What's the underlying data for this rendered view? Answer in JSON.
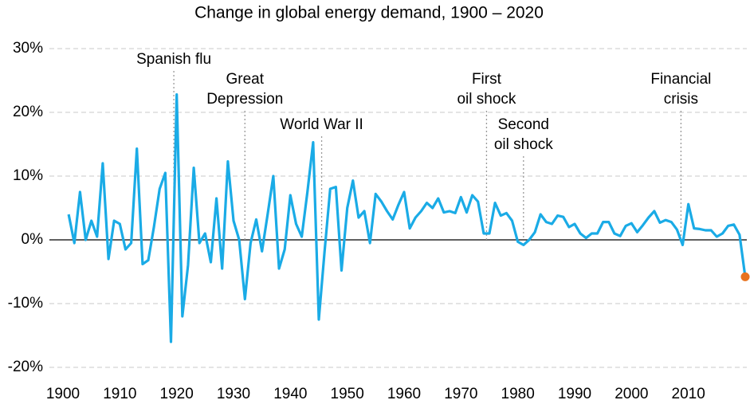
{
  "chart_data": {
    "type": "line",
    "title": "Change in global energy demand, 1900 – 2020",
    "x": [
      1901,
      1902,
      1903,
      1904,
      1905,
      1906,
      1907,
      1908,
      1909,
      1910,
      1911,
      1912,
      1913,
      1914,
      1915,
      1916,
      1917,
      1918,
      1919,
      1920,
      1921,
      1922,
      1923,
      1924,
      1925,
      1926,
      1927,
      1928,
      1929,
      1930,
      1931,
      1932,
      1933,
      1934,
      1935,
      1936,
      1937,
      1938,
      1939,
      1940,
      1941,
      1942,
      1943,
      1944,
      1945,
      1946,
      1947,
      1948,
      1949,
      1950,
      1951,
      1952,
      1953,
      1954,
      1955,
      1956,
      1957,
      1958,
      1959,
      1960,
      1961,
      1962,
      1963,
      1964,
      1965,
      1966,
      1967,
      1968,
      1969,
      1970,
      1971,
      1972,
      1973,
      1974,
      1975,
      1976,
      1977,
      1978,
      1979,
      1980,
      1981,
      1982,
      1983,
      1984,
      1985,
      1986,
      1987,
      1988,
      1989,
      1990,
      1991,
      1992,
      1993,
      1994,
      1995,
      1996,
      1997,
      1998,
      1999,
      2000,
      2001,
      2002,
      2003,
      2004,
      2005,
      2006,
      2007,
      2008,
      2009,
      2010,
      2011,
      2012,
      2013,
      2014,
      2015,
      2016,
      2017,
      2018,
      2019,
      2020
    ],
    "series": [
      {
        "color": "#1aabe6",
        "highlight_color": "#e8731f",
        "values": [
          4,
          -0.5,
          7.5,
          0,
          3,
          0.5,
          12,
          -3,
          3,
          2.5,
          -1.5,
          -0.5,
          14.3,
          -3.8,
          -3.2,
          2,
          8,
          10.5,
          -16,
          22.8,
          -12,
          -4,
          11.3,
          -0.5,
          1,
          -3.5,
          6.5,
          -4.5,
          12.3,
          3,
          0,
          -9.3,
          -0.5,
          3.2,
          -1.8,
          4,
          10,
          -4.5,
          -1.5,
          7,
          2.5,
          0.5,
          7.5,
          15.3,
          -12.5,
          -2,
          8,
          8.3,
          -4.8,
          5,
          9.3,
          3.5,
          4.5,
          -0.5,
          7.2,
          6,
          4.5,
          3.2,
          5.5,
          7.5,
          1.8,
          3.5,
          4.5,
          5.8,
          5,
          6.5,
          4.3,
          4.5,
          4.2,
          6.7,
          4.3,
          7,
          6,
          1,
          1,
          5.8,
          3.8,
          4.2,
          3,
          -0.3,
          -0.8,
          0,
          1.2,
          4,
          2.8,
          2.5,
          3.8,
          3.6,
          2,
          2.5,
          1,
          0.3,
          1,
          1,
          2.8,
          2.8,
          1,
          0.6,
          2.2,
          2.6,
          1.2,
          2.3,
          3.5,
          4.5,
          2.7,
          3.1,
          2.8,
          1.6,
          -0.8,
          5.6,
          1.8,
          1.7,
          1.5,
          1.5,
          0.5,
          1,
          2.2,
          2.4,
          0.8,
          -5.8
        ]
      }
    ],
    "xlim": [
      1900,
      2020
    ],
    "xticks": [
      1900,
      1910,
      1920,
      1930,
      1940,
      1950,
      1960,
      1970,
      1980,
      1990,
      2000,
      2010
    ],
    "ylim": [
      -20,
      30
    ],
    "yticks": [
      {
        "value": -20,
        "label": "-20%"
      },
      {
        "value": -10,
        "label": "-10%"
      },
      {
        "value": 0,
        "label": "0%"
      },
      {
        "value": 10,
        "label": "10%"
      },
      {
        "value": 20,
        "label": "20%"
      },
      {
        "value": 30,
        "label": "30%"
      }
    ],
    "grid": true,
    "annotations": [
      {
        "lines": [
          "Spanish flu"
        ],
        "x": 1919.5
      },
      {
        "lines": [
          "Great",
          "Depression"
        ],
        "x": 1932
      },
      {
        "lines": [
          "World War II"
        ],
        "x": 1945.5
      },
      {
        "lines": [
          "First",
          "oil shock"
        ],
        "x": 1974.5
      },
      {
        "lines": [
          "Second",
          "oil shock"
        ],
        "x": 1981
      },
      {
        "lines": [
          "Financial",
          "crisis"
        ],
        "x": 2008.7
      }
    ]
  }
}
